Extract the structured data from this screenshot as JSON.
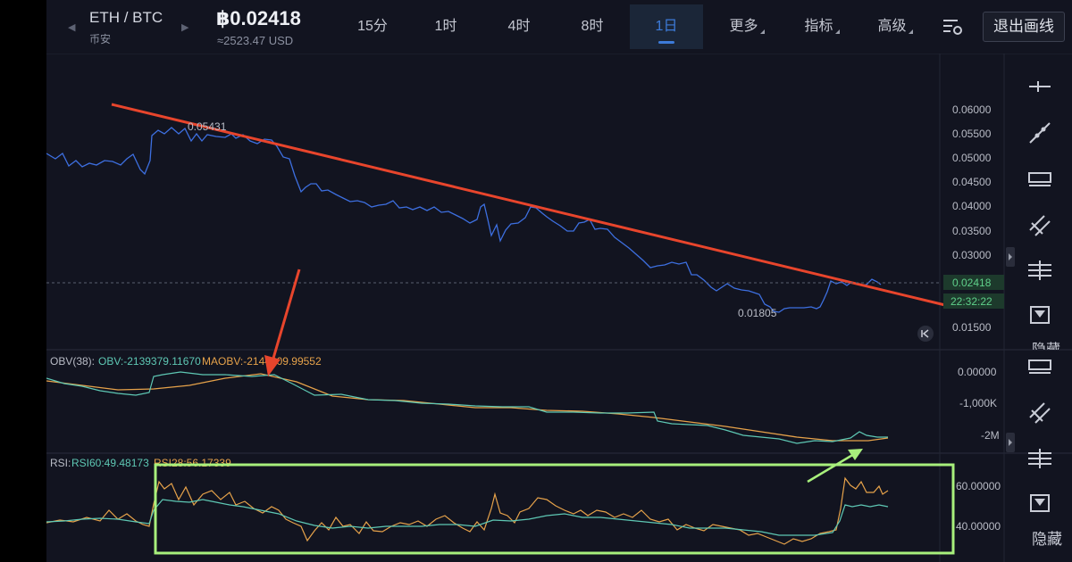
{
  "header": {
    "pair": "ETH / BTC",
    "exchange": "币安",
    "price": "฿0.02418",
    "usd_price": "≈2523.47 USD",
    "timeframes": [
      "15分",
      "1时",
      "4时",
      "8时",
      "1日"
    ],
    "active_timeframe": "1日",
    "menus": [
      "更多",
      "指标",
      "高级"
    ],
    "exit_label": "退出画线"
  },
  "price_axis": {
    "ticks": [
      "0.06000",
      "0.05500",
      "0.05000",
      "0.04500",
      "0.04000",
      "0.03500",
      "0.03000",
      "0.01500"
    ],
    "current_price": "0.02418",
    "countdown": "22:32:22",
    "high_label": "0.05431",
    "low_label": "0.01805"
  },
  "obv_panel": {
    "name": "OBV(38):",
    "obv": "OBV:-2139379.11670",
    "maobv": "MAOBV:-2144809.99552",
    "ticks": [
      "0.00000",
      "-1,000K",
      "-2M"
    ]
  },
  "rsi_panel": {
    "name": "RSI:",
    "rsi60": "RSI60:49.48173",
    "rsi28": "RSI28:56.17339",
    "ticks": [
      "60.00000",
      "40.00000"
    ]
  },
  "sidebar": {
    "hide_label": "隐藏"
  },
  "colors": {
    "background": "#121420",
    "price_line": "#3d6fe0",
    "trend_line": "#e8452c",
    "obv_line": "#5ec8b4",
    "maobv_line": "#e6a24a",
    "annotation_box": "#a8f07c",
    "active_tab": "#3d7bd9"
  }
}
